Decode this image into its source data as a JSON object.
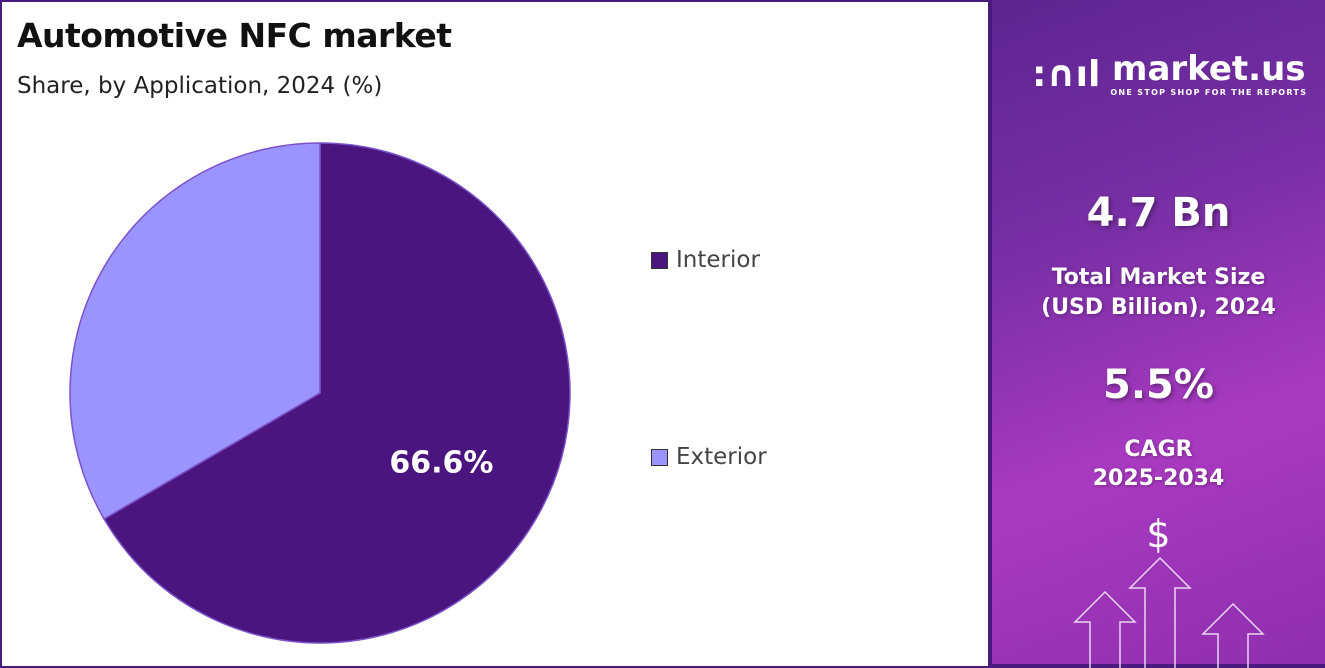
{
  "chart_data": {
    "type": "pie",
    "title": "Automotive NFC market",
    "subtitle": "Share, by Application, 2024 (%)",
    "categories": [
      "Interior",
      "Exterior"
    ],
    "values": [
      66.6,
      33.4
    ],
    "data_labels": [
      "66.6%",
      ""
    ],
    "colors": [
      "#4b1580",
      "#9b94ff"
    ],
    "legend_position": "right"
  },
  "panel": {
    "logo_name": "market.us",
    "logo_tagline": "ONE STOP SHOP FOR THE REPORTS",
    "market_size": "4.7 Bn",
    "market_size_label_1": "Total Market Size",
    "market_size_label_2": "(USD Billion), 2024",
    "cagr": "5.5%",
    "cagr_label_1": "CAGR",
    "cagr_label_2": "2025-2034",
    "dollar_symbol": "$"
  }
}
